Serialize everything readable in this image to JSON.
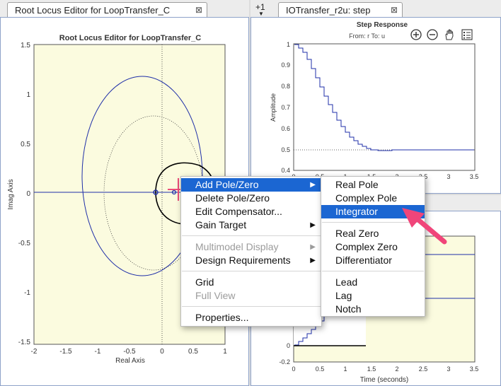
{
  "left_tab": {
    "title": "Root Locus Editor for LoopTransfer_C",
    "close_glyph": "⊠"
  },
  "right_tabs": {
    "count_label": "+1",
    "active_title": "IOTransfer_r2u: step",
    "close_glyph": "⊠"
  },
  "root_locus": {
    "title": "Root Locus Editor for LoopTransfer_C",
    "xlabel": "Real Axis",
    "ylabel": "Imag Axis",
    "xticks": [
      "-2",
      "-1.5",
      "-1",
      "-0.5",
      "0",
      "0.5",
      "1"
    ],
    "yticks": [
      "1.5",
      "1",
      "0.5",
      "0",
      "-0.5",
      "-1",
      "-1.5"
    ]
  },
  "step_top": {
    "title": "Step Response",
    "subtitle": "From: r  To: u",
    "ylabel": "Amplitude",
    "yticks": [
      "1",
      "0.9",
      "0.8",
      "0.7",
      "0.6",
      "0.5",
      "0.4"
    ],
    "xticks": [
      "0",
      "0.5",
      "1",
      "1.5",
      "2",
      "2.5",
      "3",
      "3.5"
    ]
  },
  "step_bottom": {
    "xlabel": "Time (seconds)",
    "yticks": [
      "0",
      "-0.2"
    ],
    "xticks": [
      "0",
      "0.5",
      "1",
      "1.5",
      "2",
      "2.5",
      "3",
      "3.5"
    ]
  },
  "toolbar": {
    "zoom_in": "zoom-in",
    "zoom_out": "zoom-out",
    "pan": "pan",
    "legend": "legend"
  },
  "context_menu": {
    "add_pole_zero": "Add Pole/Zero",
    "delete_pole_zero": "Delete Pole/Zero",
    "edit_compensator": "Edit Compensator...",
    "gain_target": "Gain Target",
    "multimodel_display": "Multimodel Display",
    "design_requirements": "Design Requirements",
    "grid": "Grid",
    "full_view": "Full View",
    "properties": "Properties..."
  },
  "submenu": {
    "real_pole": "Real Pole",
    "complex_pole": "Complex Pole",
    "integrator": "Integrator",
    "real_zero": "Real Zero",
    "complex_zero": "Complex Zero",
    "differentiator": "Differentiator",
    "lead": "Lead",
    "lag": "Lag",
    "notch": "Notch"
  },
  "colors": {
    "accent": "#1b66d2",
    "plot_bg": "#fbfbdf",
    "locus": "#1f2fa8",
    "arrow": "#f0457a"
  }
}
